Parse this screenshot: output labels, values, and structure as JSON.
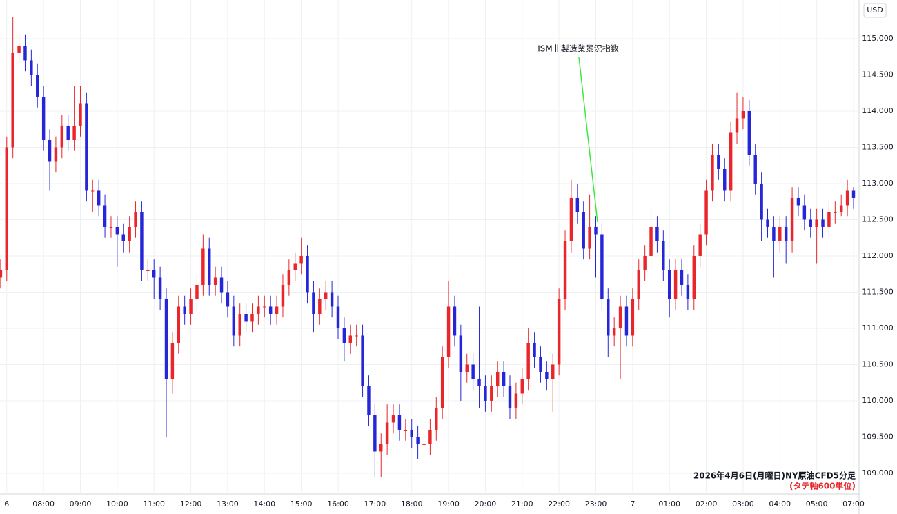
{
  "chart_data": {
    "type": "candlestick",
    "title": "2026年4月6日(月曜日)NY原油CFD5分足",
    "subtitle": "(タテ軸600単位)",
    "y_unit": "USD",
    "annotation": "ISM非製造業景況指数",
    "up_color": "#e8262b",
    "down_color": "#2626d9",
    "annotation_color": "#3de83d",
    "grid": true,
    "xlim": [
      -0.1,
      139.9
    ],
    "xticks": [
      {
        "value": 1,
        "label": "6"
      },
      {
        "value": 7,
        "label": "08:00"
      },
      {
        "value": 13,
        "label": "09:00"
      },
      {
        "value": 19,
        "label": "10:00"
      },
      {
        "value": 25,
        "label": "11:00"
      },
      {
        "value": 31,
        "label": "12:00"
      },
      {
        "value": 37,
        "label": "13:00"
      },
      {
        "value": 43,
        "label": "14:00"
      },
      {
        "value": 49,
        "label": "15:00"
      },
      {
        "value": 55,
        "label": "16:00"
      },
      {
        "value": 61,
        "label": "17:00"
      },
      {
        "value": 67,
        "label": "18:00"
      },
      {
        "value": 73,
        "label": "19:00"
      },
      {
        "value": 79,
        "label": "20:00"
      },
      {
        "value": 85,
        "label": "21:00"
      },
      {
        "value": 91,
        "label": "22:00"
      },
      {
        "value": 97,
        "label": "23:00"
      },
      {
        "value": 103,
        "label": "7"
      },
      {
        "value": 109,
        "label": "01:00"
      },
      {
        "value": 115,
        "label": "02:00"
      },
      {
        "value": 121,
        "label": "03:00"
      },
      {
        "value": 127,
        "label": "04:00"
      },
      {
        "value": 133,
        "label": "05:00"
      },
      {
        "value": 139,
        "label": "07:00"
      }
    ],
    "ylim": [
      108.714,
      115.533
    ],
    "yticks": [
      {
        "value": 109,
        "label": "109.000"
      },
      {
        "value": 109.5,
        "label": "109.500"
      },
      {
        "value": 110,
        "label": "110.000"
      },
      {
        "value": 110.5,
        "label": "110.500"
      },
      {
        "value": 111,
        "label": "111.000"
      },
      {
        "value": 111.5,
        "label": "111.500"
      },
      {
        "value": 112,
        "label": "112.000"
      },
      {
        "value": 112.5,
        "label": "112.500"
      },
      {
        "value": 113,
        "label": "113.000"
      },
      {
        "value": 113.5,
        "label": "113.500"
      },
      {
        "value": 114,
        "label": "114.000"
      },
      {
        "value": 114.5,
        "label": "114.500"
      },
      {
        "value": 115,
        "label": "115.000"
      }
    ],
    "open": [
      111.7,
      111.8,
      113.5,
      114.8,
      114.9,
      114.7,
      114.5,
      114.2,
      113.6,
      113.3,
      113.5,
      113.8,
      113.6,
      113.8,
      114.1,
      112.9,
      112.9,
      112.7,
      112.4,
      112.4,
      112.3,
      112.2,
      112.4,
      112.6,
      111.8,
      111.8,
      111.7,
      111.4,
      110.3,
      110.8,
      111.3,
      111.2,
      111.4,
      111.6,
      112.1,
      111.6,
      111.7,
      111.5,
      111.3,
      110.9,
      111.2,
      111.1,
      111.2,
      111.3,
      111.3,
      111.2,
      111.3,
      111.6,
      111.8,
      111.9,
      112.0,
      111.5,
      111.2,
      111.4,
      111.5,
      111.3,
      111.0,
      110.8,
      110.9,
      110.9,
      110.2,
      109.8,
      109.3,
      109.4,
      109.7,
      109.8,
      109.6,
      109.6,
      109.5,
      109.4,
      109.4,
      109.6,
      109.9,
      110.6,
      111.3,
      110.9,
      110.4,
      110.5,
      110.3,
      110.2,
      110.0,
      110.2,
      110.4,
      110.2,
      109.9,
      110.1,
      110.3,
      110.8,
      110.6,
      110.4,
      110.3,
      110.5,
      111.4,
      112.2,
      112.8,
      112.6,
      112.1,
      112.4,
      112.3,
      111.4,
      110.9,
      111.0,
      111.3,
      110.9,
      111.4,
      111.8,
      112.0,
      112.4,
      112.2,
      111.8,
      111.4,
      111.8,
      111.6,
      111.4,
      112.0,
      112.3,
      112.9,
      113.4,
      113.2,
      112.9,
      113.7,
      113.9,
      114.0,
      113.4,
      113.0,
      112.5,
      112.4,
      112.2,
      112.4,
      112.2,
      112.8,
      112.7,
      112.5,
      112.4,
      112.5,
      112.4,
      112.6,
      112.6,
      112.7,
      112.9
    ],
    "high": [
      111.95,
      113.65,
      115.3,
      115.05,
      115.05,
      114.85,
      114.65,
      114.35,
      113.75,
      113.65,
      113.95,
      113.95,
      114.35,
      114.35,
      114.25,
      113.05,
      113.05,
      112.85,
      112.55,
      112.55,
      112.45,
      112.55,
      112.75,
      112.75,
      111.95,
      111.95,
      111.85,
      111.55,
      110.95,
      111.45,
      111.45,
      111.55,
      111.75,
      112.3,
      112.25,
      111.85,
      111.85,
      111.65,
      111.45,
      111.35,
      111.35,
      111.35,
      111.45,
      111.45,
      111.45,
      111.45,
      111.75,
      111.95,
      112.05,
      112.25,
      112.15,
      111.65,
      111.55,
      111.65,
      111.65,
      111.45,
      111.15,
      111.05,
      111.05,
      111.05,
      110.35,
      109.95,
      109.55,
      109.95,
      109.95,
      109.95,
      109.75,
      109.75,
      109.65,
      109.55,
      109.75,
      110.05,
      110.75,
      111.65,
      111.45,
      111.05,
      110.65,
      110.65,
      111.3,
      110.35,
      110.35,
      110.55,
      110.55,
      110.35,
      110.25,
      110.45,
      111.0,
      110.95,
      110.75,
      110.55,
      110.65,
      111.55,
      112.35,
      113.05,
      113.0,
      112.75,
      112.85,
      112.55,
      112.45,
      111.55,
      111.15,
      111.45,
      111.45,
      111.55,
      111.95,
      112.15,
      112.65,
      112.55,
      112.35,
      111.95,
      111.95,
      111.95,
      111.75,
      112.15,
      112.45,
      113.05,
      113.55,
      113.55,
      113.35,
      113.85,
      114.25,
      114.2,
      114.15,
      113.55,
      113.15,
      112.65,
      112.55,
      112.55,
      112.55,
      112.95,
      112.95,
      112.85,
      112.65,
      112.65,
      112.65,
      112.75,
      112.75,
      112.85,
      113.05,
      112.95
    ],
    "low": [
      111.55,
      111.65,
      113.35,
      114.65,
      114.55,
      114.35,
      114.05,
      113.45,
      112.9,
      113.15,
      113.35,
      113.45,
      113.45,
      113.65,
      112.75,
      112.6,
      112.55,
      112.25,
      112.25,
      111.85,
      112.05,
      112.05,
      112.25,
      111.65,
      111.65,
      111.4,
      111.25,
      109.5,
      110.1,
      110.65,
      111.05,
      111.05,
      111.25,
      111.45,
      111.45,
      111.45,
      111.35,
      111.15,
      110.75,
      110.75,
      110.95,
      110.95,
      111.05,
      111.15,
      111.05,
      111.05,
      111.15,
      111.45,
      111.65,
      111.75,
      111.35,
      110.95,
      111.05,
      111.25,
      111.15,
      110.85,
      110.55,
      110.65,
      110.75,
      110.05,
      109.65,
      108.95,
      108.95,
      109.25,
      109.55,
      109.45,
      109.45,
      109.35,
      109.2,
      109.25,
      109.25,
      109.45,
      109.75,
      110.45,
      110.75,
      110.0,
      110.25,
      110.15,
      109.9,
      109.85,
      109.85,
      110.05,
      110.05,
      109.75,
      109.75,
      109.95,
      110.15,
      110.45,
      110.25,
      110.15,
      109.85,
      110.35,
      111.25,
      112.05,
      112.45,
      111.95,
      111.95,
      111.7,
      111.25,
      110.6,
      110.75,
      110.3,
      110.75,
      110.75,
      111.25,
      111.65,
      111.85,
      112.05,
      111.65,
      111.15,
      111.25,
      111.45,
      111.25,
      111.25,
      111.85,
      112.15,
      112.75,
      113.05,
      112.75,
      112.75,
      113.55,
      113.75,
      113.25,
      112.85,
      112.2,
      112.25,
      111.7,
      112.05,
      111.9,
      112.05,
      112.55,
      112.35,
      112.25,
      111.9,
      112.25,
      112.25,
      112.45,
      112.55,
      112.55,
      112.65
    ],
    "close": [
      111.8,
      113.5,
      114.8,
      114.9,
      114.7,
      114.5,
      114.2,
      113.6,
      113.3,
      113.5,
      113.8,
      113.6,
      113.8,
      114.1,
      112.9,
      112.9,
      112.7,
      112.4,
      112.4,
      112.3,
      112.2,
      112.4,
      112.6,
      111.8,
      111.8,
      111.7,
      111.4,
      110.3,
      110.8,
      111.3,
      111.2,
      111.4,
      111.6,
      112.1,
      111.6,
      111.7,
      111.5,
      111.3,
      110.9,
      111.2,
      111.1,
      111.2,
      111.3,
      111.3,
      111.2,
      111.3,
      111.6,
      111.8,
      111.9,
      112.0,
      111.5,
      111.2,
      111.4,
      111.5,
      111.3,
      111.0,
      110.8,
      110.9,
      110.9,
      110.2,
      109.8,
      109.3,
      109.4,
      109.7,
      109.8,
      109.6,
      109.6,
      109.5,
      109.4,
      109.4,
      109.6,
      109.9,
      110.6,
      111.3,
      110.9,
      110.4,
      110.5,
      110.3,
      110.2,
      110.0,
      110.2,
      110.4,
      110.2,
      109.9,
      110.1,
      110.3,
      110.8,
      110.6,
      110.4,
      110.3,
      110.5,
      111.4,
      112.2,
      112.8,
      112.6,
      112.1,
      112.4,
      112.3,
      111.4,
      110.9,
      111.0,
      111.3,
      110.9,
      111.4,
      111.8,
      112.0,
      112.4,
      112.2,
      111.8,
      111.4,
      111.8,
      111.6,
      111.4,
      112.0,
      112.3,
      112.9,
      113.4,
      113.2,
      112.9,
      113.7,
      113.9,
      114.0,
      113.4,
      113.0,
      112.5,
      112.4,
      112.2,
      112.4,
      112.2,
      112.8,
      112.7,
      112.5,
      112.4,
      112.5,
      112.4,
      112.6,
      112.6,
      112.7,
      112.9,
      112.8
    ]
  }
}
